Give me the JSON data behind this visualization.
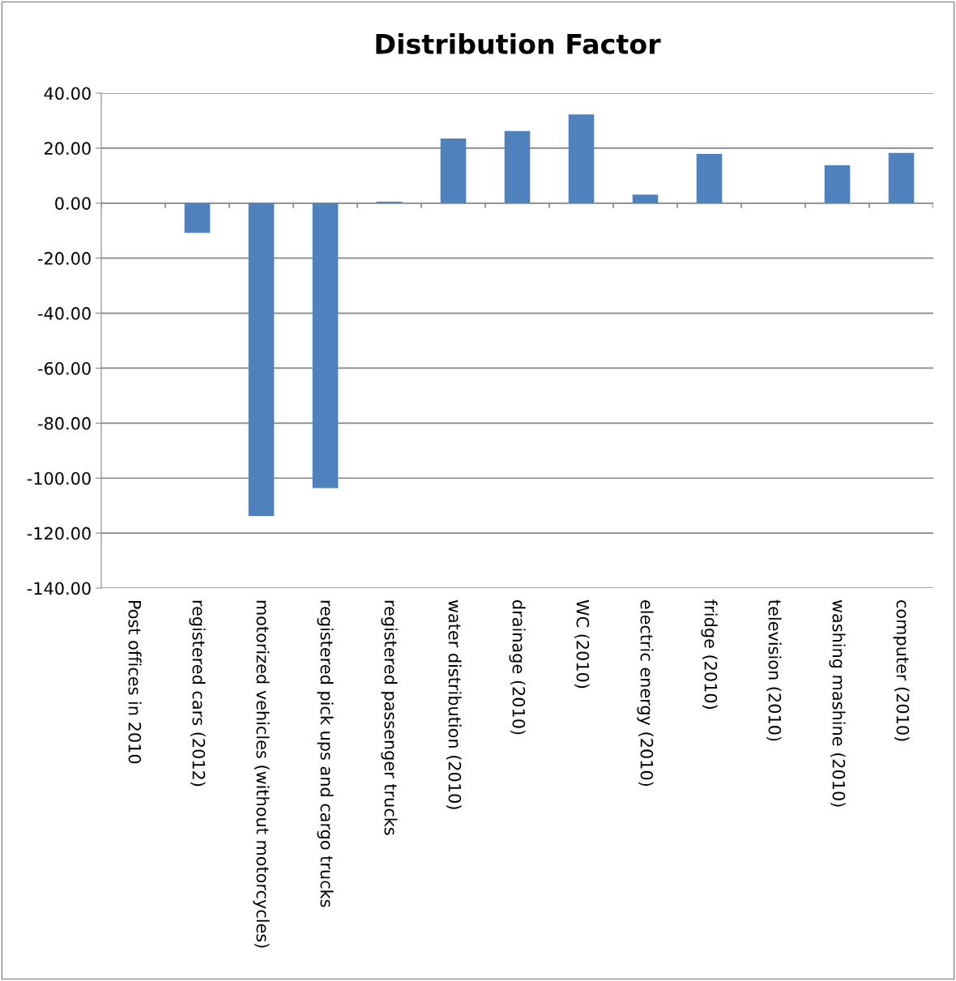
{
  "chart_data": {
    "type": "bar",
    "title": "Distribution Factor",
    "categories": [
      "Post offices in 2010",
      "registered cars (2012)",
      "motorized vehicles (without motorcycles)",
      "registered pick ups and cargo trucks",
      "registered passenger trucks",
      "water distribution (2010)",
      "drainage (2010)",
      "WC (2010)",
      "electric energy (2010)",
      "fridge (2010)",
      "television (2010)",
      "washing mashine (2010)",
      "computer (2010)"
    ],
    "values": [
      0,
      -10.8,
      -113.8,
      -103.6,
      0.5,
      23.5,
      26.2,
      32.3,
      3.1,
      17.9,
      0,
      13.8,
      18.3
    ],
    "color": "#4f81bd",
    "ylim": [
      -140,
      40
    ],
    "yticks": [
      {
        "value": -140,
        "label": "-140.00"
      },
      {
        "value": -120,
        "label": "-120.00"
      },
      {
        "value": -100,
        "label": "-100.00"
      },
      {
        "value": -80,
        "label": "-80.00"
      },
      {
        "value": -60,
        "label": "-60.00"
      },
      {
        "value": -40,
        "label": "-40.00"
      },
      {
        "value": -20,
        "label": "-20.00"
      },
      {
        "value": 0,
        "label": "0.00"
      },
      {
        "value": 20,
        "label": "20.00"
      },
      {
        "value": 40,
        "label": "40.00"
      }
    ],
    "grid": "y",
    "legend": false
  }
}
